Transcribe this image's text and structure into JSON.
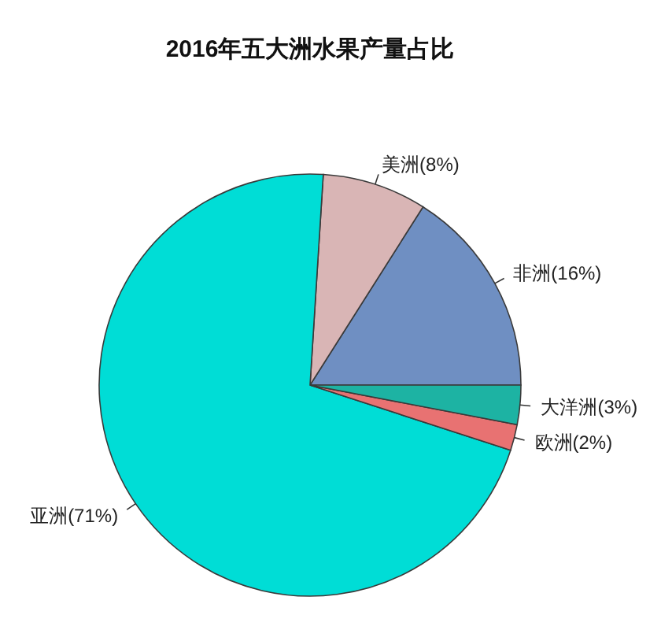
{
  "chart_data": {
    "type": "pie",
    "title": "2016年五大洲水果产量占比",
    "categories": [
      "非洲",
      "美洲",
      "亚洲",
      "欧洲",
      "大洋洲"
    ],
    "values": [
      16,
      8,
      71,
      2,
      3
    ],
    "colors": [
      "#6f8fc2",
      "#d9b5b5",
      "#00ddd6",
      "#e87272",
      "#1db3a3"
    ],
    "value_labels": [
      "(16%)",
      "(8%)",
      "(71%)",
      "(2%)",
      "(3%)"
    ]
  }
}
